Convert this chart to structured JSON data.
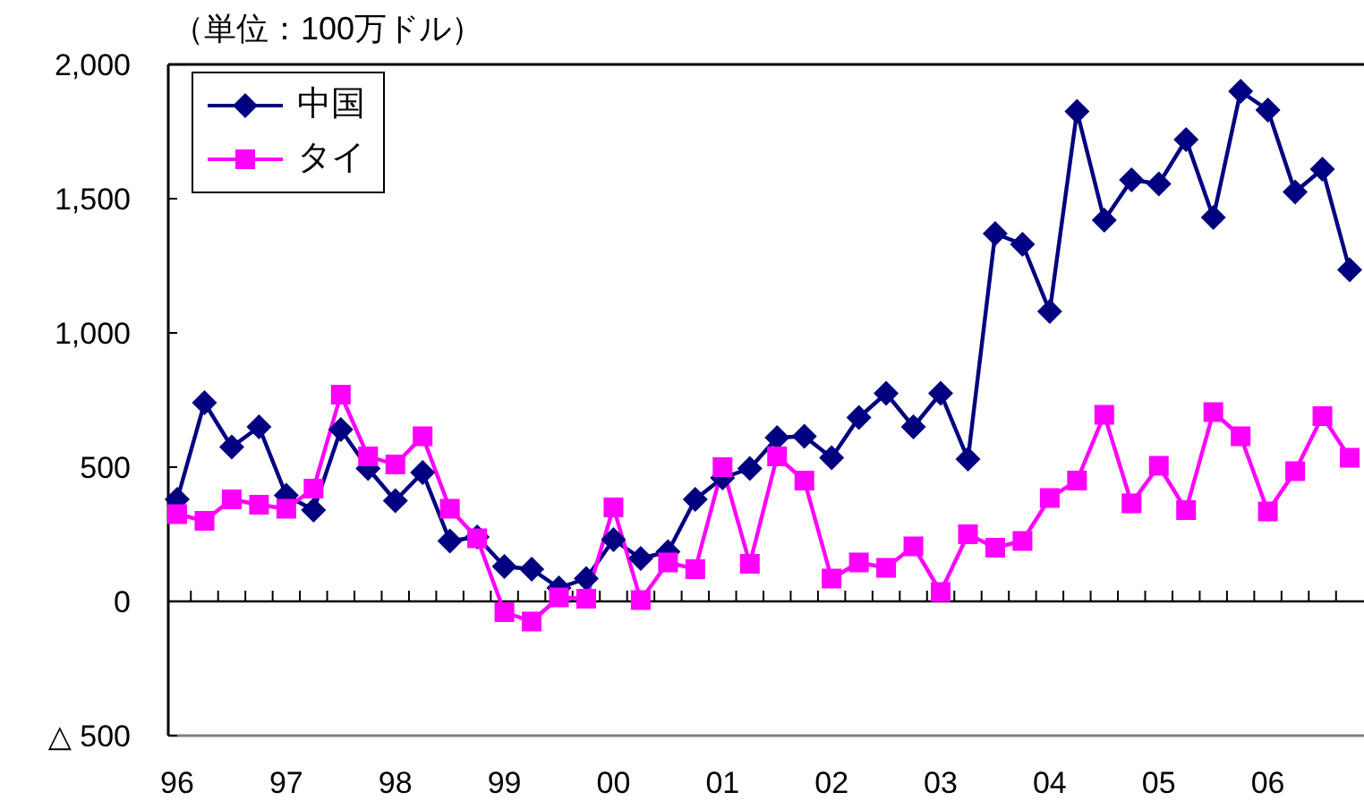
{
  "chart_data": {
    "type": "line",
    "ylabel": "（単位：100万ドル）",
    "categories": [
      "96",
      null,
      null,
      null,
      "97",
      null,
      null,
      null,
      "98",
      null,
      null,
      null,
      "99",
      null,
      null,
      null,
      "00",
      null,
      null,
      null,
      "01",
      null,
      null,
      null,
      "02",
      null,
      null,
      null,
      "03",
      null,
      null,
      null,
      "04",
      null,
      null,
      null,
      "05",
      null,
      null,
      null,
      "06",
      null,
      null,
      null
    ],
    "series": [
      {
        "name": "中国",
        "color": "#000080",
        "marker": "diamond",
        "values": [
          380,
          740,
          575,
          650,
          395,
          340,
          640,
          495,
          375,
          480,
          225,
          240,
          130,
          120,
          50,
          85,
          230,
          160,
          185,
          380,
          460,
          495,
          610,
          615,
          535,
          685,
          775,
          650,
          775,
          530,
          1370,
          1330,
          1080,
          1825,
          1420,
          1570,
          1555,
          1720,
          1430,
          1900,
          1830,
          1525,
          1610,
          1235
        ]
      },
      {
        "name": "タイ",
        "color": "#ff00ff",
        "marker": "square",
        "values": [
          325,
          300,
          380,
          360,
          345,
          420,
          770,
          540,
          510,
          615,
          345,
          235,
          -40,
          -75,
          15,
          10,
          350,
          5,
          145,
          120,
          500,
          140,
          540,
          450,
          85,
          145,
          125,
          205,
          35,
          250,
          200,
          225,
          385,
          450,
          695,
          365,
          505,
          340,
          705,
          615,
          335,
          485,
          690,
          535
        ]
      }
    ],
    "ylim": [
      -500,
      2000
    ],
    "yticks": [
      {
        "value": -500,
        "label": "△ 500"
      },
      0,
      500,
      {
        "value": 1000,
        "label": "1,000"
      },
      {
        "value": 1500,
        "label": "1,500"
      },
      {
        "value": 2000,
        "label": "2,000"
      }
    ],
    "legend": "top left"
  }
}
